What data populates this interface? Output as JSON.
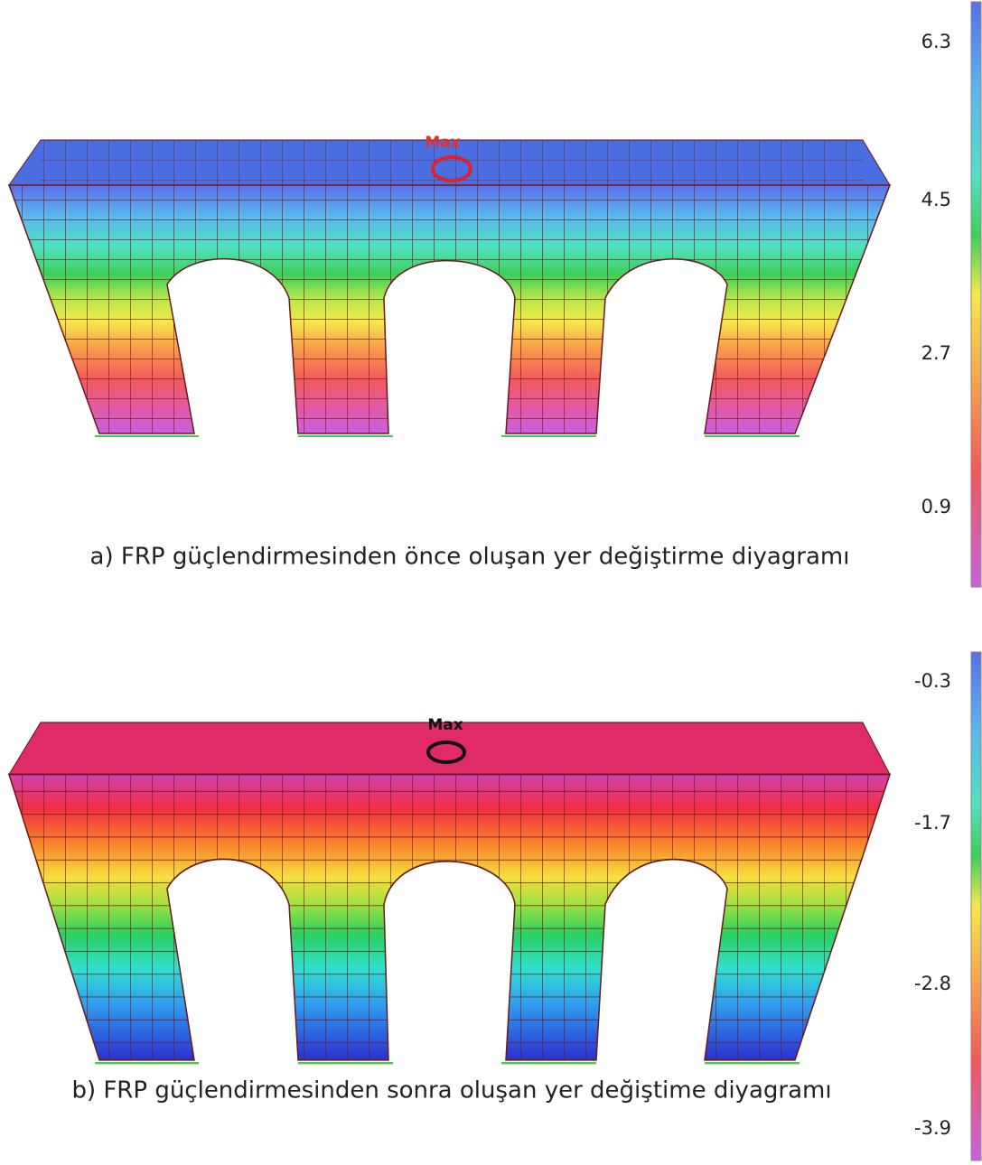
{
  "panels": [
    {
      "max_label": "Max",
      "caption": "a) FRP güçlendirmesinden önce oluşan yer değiştirme diyagramı",
      "scale": {
        "ticks": [
          "6.3",
          "4.5",
          "2.7",
          "0.9"
        ]
      }
    },
    {
      "max_label": "Max",
      "caption": "b) FRP güçlendirmesinden sonra oluşan yer değiştime diyagramı",
      "scale": {
        "ticks": [
          "-0.3",
          "-1.7",
          "-2.8",
          "-3.9"
        ]
      }
    }
  ]
}
